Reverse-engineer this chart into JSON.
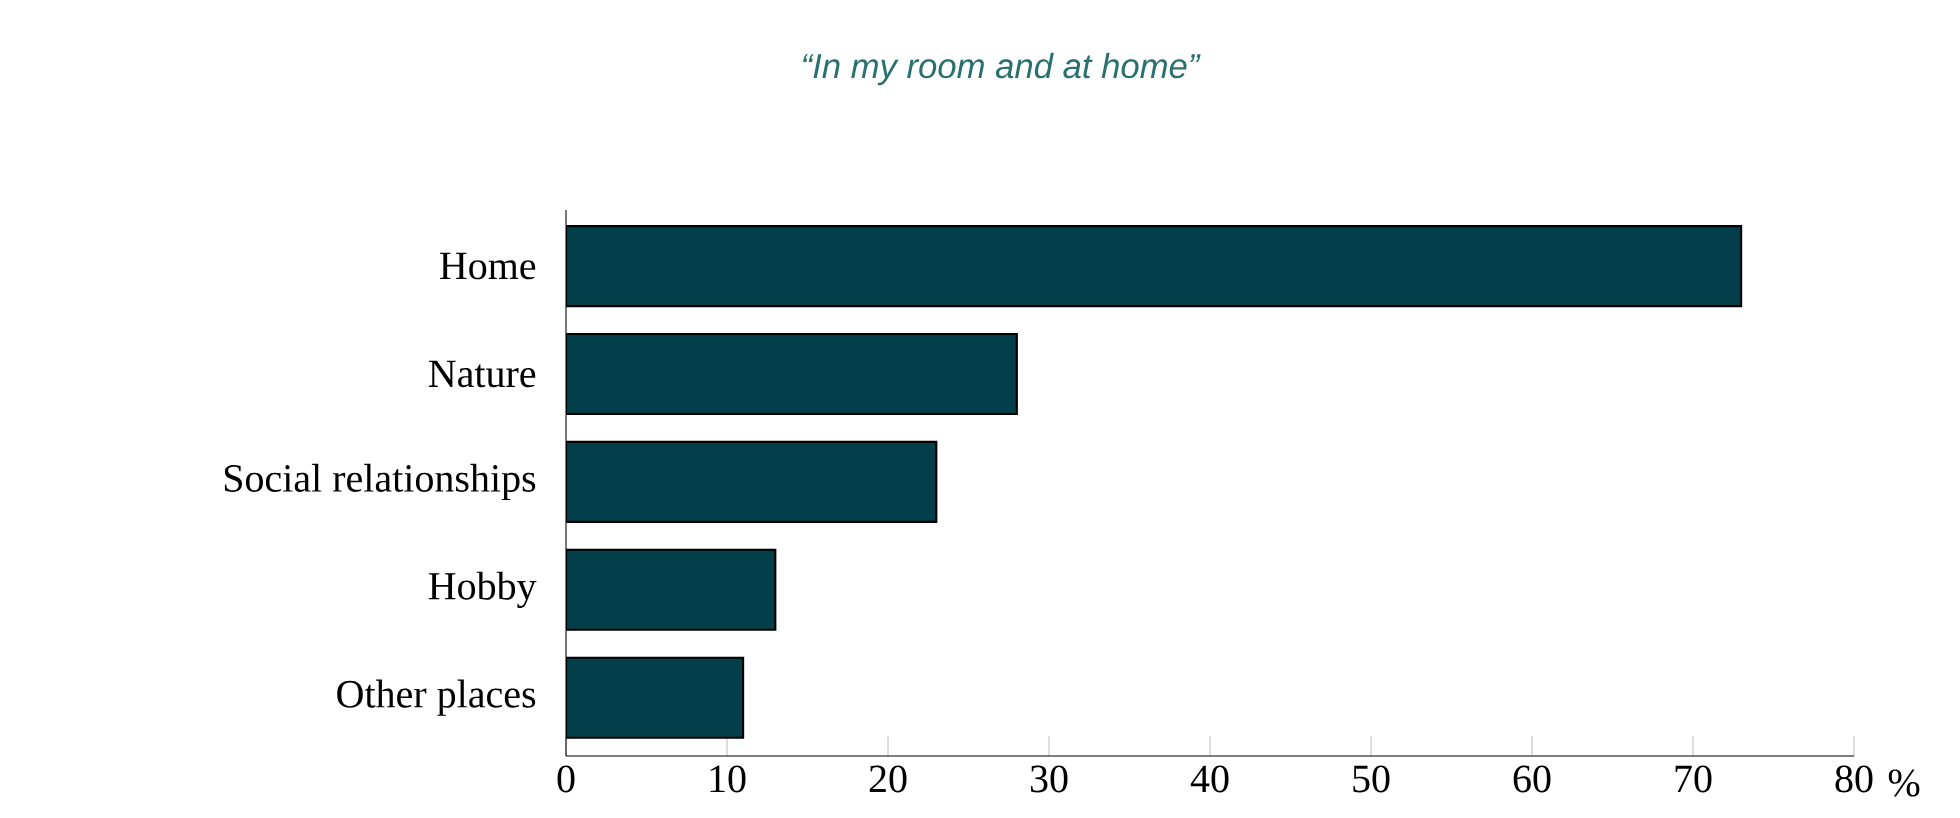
{
  "chart_data": {
    "type": "bar",
    "orientation": "horizontal",
    "title": "“In my room and at home”",
    "categories": [
      "Home",
      "Nature",
      "Social relationships",
      "Hobby",
      "Other places"
    ],
    "values": [
      73,
      28,
      23,
      13,
      11
    ],
    "color": "#023f4a",
    "xlabel": "%",
    "xlim": [
      0,
      80
    ],
    "xticks": [
      0,
      10,
      20,
      30,
      40,
      50,
      60,
      70,
      80
    ]
  }
}
